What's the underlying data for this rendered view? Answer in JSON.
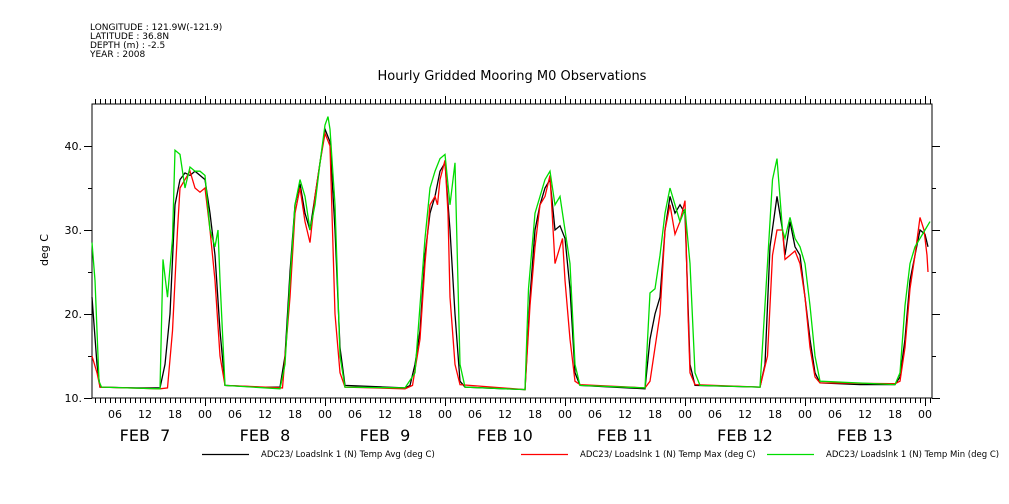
{
  "header": {
    "longitude": "LONGITUDE : 121.9W(-121.9)",
    "latitude": "LATITUDE : 36.8N",
    "depth": "DEPTH (m) : -2.5",
    "year": "YEAR : 2008"
  },
  "chart_data": {
    "type": "line",
    "title": "Hourly Gridded Mooring M0 Observations",
    "xlabel": "",
    "ylabel": "deg C",
    "x_units": "hours since FEB 7 00:00, 2008",
    "xlim": [
      1.4,
      169.4
    ],
    "ylim": [
      10,
      45
    ],
    "y_ticks": [
      10,
      20,
      30,
      40
    ],
    "y_tick_labels": [
      "10.",
      "20.",
      "30.",
      "40."
    ],
    "x_tick_labels": [
      "06",
      "12",
      "18",
      "00",
      "06",
      "12",
      "18",
      "00",
      "06",
      "12",
      "18",
      "00",
      "06",
      "12",
      "18",
      "00",
      "06",
      "12",
      "18",
      "00",
      "06",
      "12",
      "18",
      "00",
      "06",
      "12",
      "18",
      "00"
    ],
    "day_labels": [
      "FEB  7",
      "FEB  8",
      "FEB  9",
      "FEB 10",
      "FEB 11",
      "FEB 12",
      "FEB 13"
    ],
    "grid": false,
    "legend_position": "bottom",
    "series": [
      {
        "name": "ADC23/ Loadslnk 1 (N) Temp Avg (deg C)",
        "color": "#000000",
        "points": [
          [
            1.4,
            22
          ],
          [
            2.4,
            14
          ],
          [
            3,
            11.3
          ],
          [
            10,
            11.2
          ],
          [
            15,
            11.2
          ],
          [
            16,
            14
          ],
          [
            17,
            20
          ],
          [
            18,
            33
          ],
          [
            19,
            36
          ],
          [
            20,
            36.8
          ],
          [
            21,
            36.5
          ],
          [
            22,
            37
          ],
          [
            23,
            36.5
          ],
          [
            24,
            36
          ],
          [
            25,
            32
          ],
          [
            26,
            27
          ],
          [
            27,
            18
          ],
          [
            28,
            11.5
          ],
          [
            35,
            11.3
          ],
          [
            39,
            11.3
          ],
          [
            40,
            15
          ],
          [
            41,
            25
          ],
          [
            42,
            33
          ],
          [
            43,
            35.5
          ],
          [
            44,
            32
          ],
          [
            45,
            30
          ],
          [
            46,
            34
          ],
          [
            47,
            38
          ],
          [
            48,
            42
          ],
          [
            49,
            40.5
          ],
          [
            50,
            30
          ],
          [
            51,
            16
          ],
          [
            52,
            11.5
          ],
          [
            64,
            11.2
          ],
          [
            65,
            11.5
          ],
          [
            66,
            14
          ],
          [
            67,
            18
          ],
          [
            68,
            27
          ],
          [
            69,
            32
          ],
          [
            70,
            34
          ],
          [
            71,
            37
          ],
          [
            72,
            38
          ],
          [
            73,
            30
          ],
          [
            74,
            20
          ],
          [
            75,
            12
          ],
          [
            76,
            11.3
          ],
          [
            88,
            11
          ],
          [
            89,
            22
          ],
          [
            90,
            30
          ],
          [
            91,
            33
          ],
          [
            92,
            35
          ],
          [
            93,
            36
          ],
          [
            94,
            30
          ],
          [
            95,
            30.5
          ],
          [
            96,
            29
          ],
          [
            97,
            23
          ],
          [
            98,
            13
          ],
          [
            99,
            11.5
          ],
          [
            112,
            11.1
          ],
          [
            113,
            17
          ],
          [
            114,
            20
          ],
          [
            115,
            22
          ],
          [
            116,
            30
          ],
          [
            117,
            34
          ],
          [
            118,
            32
          ],
          [
            119,
            33
          ],
          [
            120,
            32
          ],
          [
            121,
            14
          ],
          [
            122,
            11.5
          ],
          [
            135,
            11.3
          ],
          [
            136,
            14
          ],
          [
            137,
            28
          ],
          [
            138.4,
            34
          ],
          [
            139.5,
            30
          ],
          [
            140,
            27
          ],
          [
            141,
            31
          ],
          [
            142,
            28
          ],
          [
            143,
            27
          ],
          [
            144,
            22
          ],
          [
            145,
            17
          ],
          [
            146,
            13
          ],
          [
            147,
            11.8
          ],
          [
            155,
            11.6
          ],
          [
            162,
            11.6
          ],
          [
            163,
            12.5
          ],
          [
            164,
            17
          ],
          [
            165,
            24
          ],
          [
            166,
            27
          ],
          [
            167,
            30
          ],
          [
            168,
            29.5
          ],
          [
            168.6,
            28
          ]
        ]
      },
      {
        "name": "ADC23/ Loadslnk 1 (N) Temp Max (deg C)",
        "color": "#ff0000",
        "points": [
          [
            1.4,
            15
          ],
          [
            2.4,
            13
          ],
          [
            3,
            11.3
          ],
          [
            15,
            11.1
          ],
          [
            16.5,
            11.2
          ],
          [
            17.5,
            18
          ],
          [
            18.5,
            30
          ],
          [
            19,
            35
          ],
          [
            20,
            36
          ],
          [
            21,
            37
          ],
          [
            22,
            35
          ],
          [
            23,
            34.5
          ],
          [
            24,
            35
          ],
          [
            25,
            30
          ],
          [
            26,
            24
          ],
          [
            27,
            15
          ],
          [
            28,
            11.5
          ],
          [
            39.5,
            11.2
          ],
          [
            41,
            22
          ],
          [
            42,
            32
          ],
          [
            43,
            35
          ],
          [
            44,
            31
          ],
          [
            45,
            28.5
          ],
          [
            46,
            34
          ],
          [
            47,
            38
          ],
          [
            48,
            41.5
          ],
          [
            49,
            40
          ],
          [
            50,
            20
          ],
          [
            51,
            13
          ],
          [
            52,
            11.3
          ],
          [
            64,
            11.1
          ],
          [
            65.5,
            11.5
          ],
          [
            67,
            17
          ],
          [
            68,
            26
          ],
          [
            69,
            33
          ],
          [
            70,
            34
          ],
          [
            70.5,
            33
          ],
          [
            71,
            36
          ],
          [
            72,
            38.3
          ],
          [
            72.6,
            32
          ],
          [
            73,
            22
          ],
          [
            74,
            14
          ],
          [
            75,
            11.6
          ],
          [
            88,
            11
          ],
          [
            89,
            21
          ],
          [
            90,
            28
          ],
          [
            91,
            33
          ],
          [
            92,
            34
          ],
          [
            93,
            36.5
          ],
          [
            94,
            26
          ],
          [
            95,
            28
          ],
          [
            95.5,
            29
          ],
          [
            96,
            24
          ],
          [
            97,
            17
          ],
          [
            98,
            12
          ],
          [
            99,
            11.6
          ],
          [
            112,
            11.2
          ],
          [
            113,
            12
          ],
          [
            114,
            16
          ],
          [
            115,
            20
          ],
          [
            116,
            30
          ],
          [
            117,
            33
          ],
          [
            118,
            29.5
          ],
          [
            119,
            31
          ],
          [
            120,
            33.5
          ],
          [
            120.6,
            20
          ],
          [
            121,
            13
          ],
          [
            122,
            11.6
          ],
          [
            135,
            11.3
          ],
          [
            136.5,
            15
          ],
          [
            137.5,
            27
          ],
          [
            138.4,
            30
          ],
          [
            139.5,
            30
          ],
          [
            140,
            26.5
          ],
          [
            141,
            27
          ],
          [
            142,
            27.5
          ],
          [
            143,
            26
          ],
          [
            144,
            22
          ],
          [
            145,
            16
          ],
          [
            146,
            12.5
          ],
          [
            147,
            11.8
          ],
          [
            162,
            11.7
          ],
          [
            163,
            12
          ],
          [
            164,
            16
          ],
          [
            165,
            23
          ],
          [
            166,
            27
          ],
          [
            167,
            31.5
          ],
          [
            167.8,
            30
          ],
          [
            168.4,
            27
          ],
          [
            168.6,
            25
          ]
        ]
      },
      {
        "name": "ADC23/ Loadslnk 1 (N) Temp Min (deg C)",
        "color": "#00dd00",
        "points": [
          [
            1.4,
            28.5
          ],
          [
            2,
            24
          ],
          [
            2.8,
            12
          ],
          [
            3.3,
            11.3
          ],
          [
            15,
            11.1
          ],
          [
            15.6,
            26.5
          ],
          [
            16.5,
            22
          ],
          [
            17.5,
            29
          ],
          [
            18,
            39.5
          ],
          [
            19,
            39
          ],
          [
            20,
            35
          ],
          [
            21,
            37.5
          ],
          [
            22,
            37
          ],
          [
            23,
            37
          ],
          [
            24,
            36.5
          ],
          [
            25,
            30
          ],
          [
            26,
            28
          ],
          [
            26.6,
            30
          ],
          [
            27,
            24
          ],
          [
            28,
            11.5
          ],
          [
            39,
            11.1
          ],
          [
            40,
            14
          ],
          [
            41,
            24
          ],
          [
            42,
            33
          ],
          [
            43,
            36
          ],
          [
            44,
            34
          ],
          [
            45,
            30
          ],
          [
            46,
            33
          ],
          [
            47,
            38
          ],
          [
            48,
            42.5
          ],
          [
            48.6,
            43.5
          ],
          [
            49,
            42
          ],
          [
            50,
            33
          ],
          [
            51,
            15
          ],
          [
            52,
            11.3
          ],
          [
            64,
            11.2
          ],
          [
            66,
            13
          ],
          [
            68,
            29
          ],
          [
            69,
            35
          ],
          [
            70,
            37
          ],
          [
            71,
            38.5
          ],
          [
            72,
            39
          ],
          [
            73,
            33
          ],
          [
            74,
            38
          ],
          [
            75,
            14
          ],
          [
            76,
            11.3
          ],
          [
            88,
            11
          ],
          [
            88.7,
            23
          ],
          [
            90,
            32
          ],
          [
            91,
            34
          ],
          [
            92,
            36
          ],
          [
            93,
            37
          ],
          [
            94,
            33
          ],
          [
            95,
            34
          ],
          [
            96,
            30
          ],
          [
            97,
            26
          ],
          [
            98,
            14
          ],
          [
            99,
            11.5
          ],
          [
            112,
            11.2
          ],
          [
            113,
            22.5
          ],
          [
            114,
            23
          ],
          [
            115,
            27
          ],
          [
            116,
            32
          ],
          [
            117,
            35
          ],
          [
            118,
            33
          ],
          [
            119,
            31
          ],
          [
            120,
            32.5
          ],
          [
            121,
            26
          ],
          [
            122,
            13
          ],
          [
            123,
            11.5
          ],
          [
            135,
            11.3
          ],
          [
            136.5,
            26
          ],
          [
            137.5,
            36
          ],
          [
            138.4,
            38.5
          ],
          [
            139.5,
            30
          ],
          [
            140,
            29
          ],
          [
            141,
            31.5
          ],
          [
            142,
            29
          ],
          [
            143,
            28
          ],
          [
            144,
            26
          ],
          [
            145,
            21
          ],
          [
            146,
            15
          ],
          [
            147,
            12
          ],
          [
            162,
            11.6
          ],
          [
            163,
            13
          ],
          [
            164,
            21
          ],
          [
            165,
            26
          ],
          [
            166,
            28
          ],
          [
            167,
            29
          ],
          [
            168,
            30
          ],
          [
            169,
            31
          ]
        ]
      }
    ]
  }
}
